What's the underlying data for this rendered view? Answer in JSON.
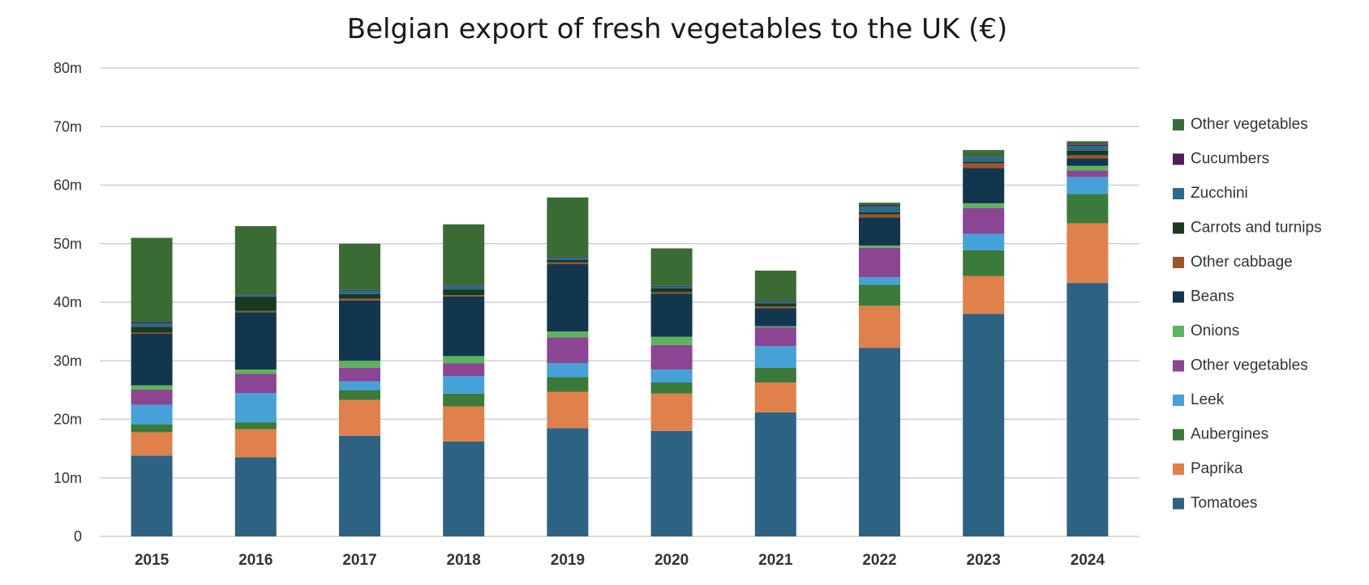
{
  "chart_data": {
    "type": "bar",
    "stacked": true,
    "title": "Belgian export of fresh vegetables to the UK (€)",
    "xlabel": "",
    "ylabel": "",
    "ylim": [
      0,
      80
    ],
    "y_ticks": [
      0,
      10,
      20,
      30,
      40,
      50,
      60,
      70,
      80
    ],
    "y_tick_labels": [
      "0",
      "10m",
      "20m",
      "30m",
      "40m",
      "50m",
      "60m",
      "70m",
      "80m"
    ],
    "grid": true,
    "legend_position": "right",
    "categories": [
      "2015",
      "2016",
      "2017",
      "2018",
      "2019",
      "2020",
      "2021",
      "2022",
      "2023",
      "2024"
    ],
    "series": [
      {
        "name": "Tomatoes",
        "color": "#2e6283",
        "values": [
          13.8,
          13.5,
          17.2,
          16.2,
          18.5,
          18.0,
          21.2,
          32.2,
          38.0,
          43.3
        ]
      },
      {
        "name": "Paprika",
        "color": "#e0804a",
        "values": [
          4.0,
          4.8,
          6.1,
          6.0,
          6.2,
          6.4,
          5.1,
          7.2,
          6.5,
          10.2
        ]
      },
      {
        "name": "Aubergines",
        "color": "#3a7a3a",
        "values": [
          1.3,
          1.2,
          1.7,
          2.2,
          2.5,
          1.9,
          2.5,
          3.6,
          4.4,
          5.0
        ]
      },
      {
        "name": "Leek",
        "color": "#45a1d8",
        "values": [
          3.4,
          5.0,
          1.5,
          3.0,
          2.4,
          2.2,
          3.7,
          1.3,
          2.8,
          2.9
        ]
      },
      {
        "name": "Other vegetables",
        "color": "#8b4593",
        "values": [
          2.6,
          3.3,
          2.3,
          2.2,
          4.4,
          4.2,
          3.2,
          5.0,
          4.4,
          1.1
        ]
      },
      {
        "name": "Onions",
        "color": "#5bb55a",
        "values": [
          0.7,
          0.7,
          1.2,
          1.2,
          1.0,
          1.4,
          0.2,
          0.4,
          0.8,
          0.8
        ]
      },
      {
        "name": "Beans",
        "color": "#12364d",
        "values": [
          8.8,
          9.8,
          10.3,
          10.2,
          11.5,
          7.4,
          3.1,
          4.8,
          6.0,
          1.3
        ]
      },
      {
        "name": "Other cabbage",
        "color": "#a0522d",
        "values": [
          0.2,
          0.2,
          0.3,
          0.2,
          0.3,
          0.2,
          0.3,
          0.5,
          0.8,
          0.5
        ]
      },
      {
        "name": "Carrots and turnips",
        "color": "#183a1e",
        "values": [
          1.0,
          2.4,
          0.8,
          1.0,
          0.4,
          0.7,
          0.5,
          0.4,
          0.3,
          0.8
        ]
      },
      {
        "name": "Zucchini",
        "color": "#2a6a8e",
        "values": [
          0.6,
          0.3,
          0.6,
          0.6,
          0.4,
          0.3,
          0.3,
          1.0,
          0.8,
          0.8
        ]
      },
      {
        "name": "Cucumbers",
        "color": "#4d1f59",
        "values": [
          0.2,
          0.1,
          0.1,
          0.1,
          0.1,
          0.1,
          0.1,
          0.2,
          0.1,
          0.2
        ]
      },
      {
        "name": "Other vegetables",
        "color": "#3a6b35",
        "values": [
          14.4,
          11.7,
          7.9,
          10.4,
          10.2,
          6.4,
          5.2,
          0.4,
          1.1,
          0.6
        ]
      }
    ]
  }
}
